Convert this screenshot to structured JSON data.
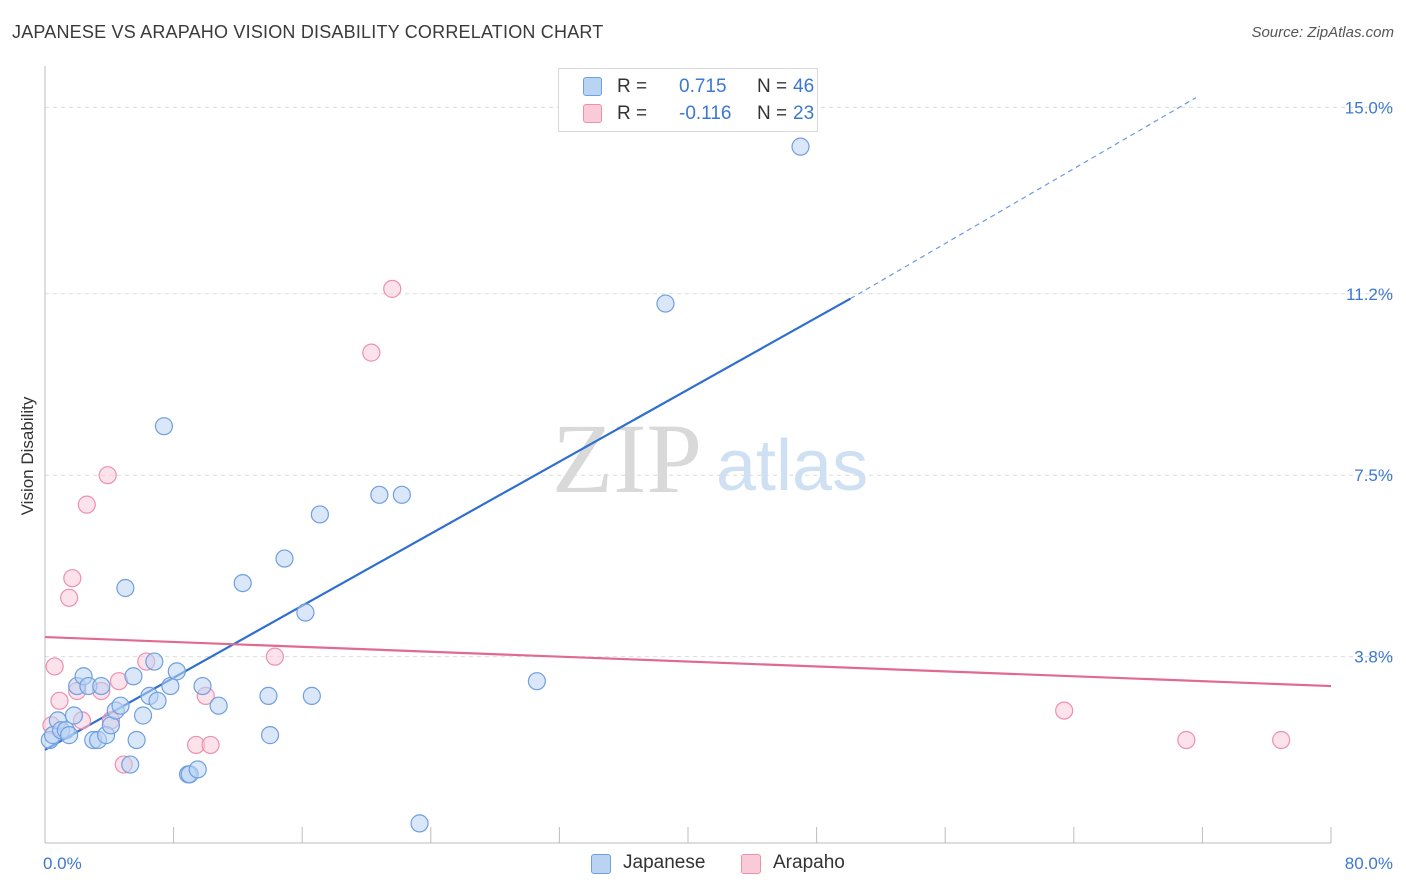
{
  "header": {
    "title": "JAPANESE VS ARAPAHO VISION DISABILITY CORRELATION CHART",
    "source": "Source: ZipAtlas.com"
  },
  "watermark": {
    "zip": "ZIP",
    "atlas": "atlas"
  },
  "legend": {
    "rows": [
      {
        "r_label": "R =",
        "r_value": "0.715",
        "n_label": "N =",
        "n_value": "46"
      },
      {
        "r_label": "R =",
        "r_value": "-0.116",
        "n_label": "N =",
        "n_value": "23"
      }
    ]
  },
  "bottom_legend": {
    "series1": "Japanese",
    "series2": "Arapaho"
  },
  "colors": {
    "japanese_fill": "#b9d3f3",
    "japanese_stroke": "#6f9fe0",
    "japanese_line": "#2f6fd0",
    "arapaho_fill": "#f9cbd8",
    "arapaho_stroke": "#ee90ac",
    "arapaho_line": "#e06a90",
    "tick_text": "#3c78d0"
  },
  "chart_data": {
    "type": "scatter",
    "title": "JAPANESE VS ARAPAHO VISION DISABILITY CORRELATION CHART",
    "xlabel": "",
    "ylabel": "Vision Disability",
    "xlim": [
      0,
      80
    ],
    "ylim": [
      0,
      15.6
    ],
    "x_tick_labels": [
      {
        "value": 0,
        "label": "0.0%"
      },
      {
        "value": 80,
        "label": "80.0%"
      }
    ],
    "y_tick_labels": [
      {
        "value": 3.8,
        "label": "3.8%"
      },
      {
        "value": 7.5,
        "label": "7.5%"
      },
      {
        "value": 11.2,
        "label": "11.2%"
      },
      {
        "value": 15.0,
        "label": "15.0%"
      }
    ],
    "series": [
      {
        "name": "Japanese",
        "R": 0.715,
        "N": 46,
        "points": [
          [
            0.3,
            2.1
          ],
          [
            0.5,
            2.2
          ],
          [
            0.8,
            2.5
          ],
          [
            1.0,
            2.3
          ],
          [
            1.3,
            2.3
          ],
          [
            1.5,
            2.2
          ],
          [
            1.8,
            2.6
          ],
          [
            2.0,
            3.2
          ],
          [
            2.4,
            3.4
          ],
          [
            2.7,
            3.2
          ],
          [
            3.0,
            2.1
          ],
          [
            3.3,
            2.1
          ],
          [
            3.5,
            3.2
          ],
          [
            3.8,
            2.2
          ],
          [
            4.1,
            2.4
          ],
          [
            4.4,
            2.7
          ],
          [
            4.7,
            2.8
          ],
          [
            5.0,
            5.2
          ],
          [
            5.3,
            1.6
          ],
          [
            5.5,
            3.4
          ],
          [
            5.7,
            2.1
          ],
          [
            6.1,
            2.6
          ],
          [
            6.5,
            3.0
          ],
          [
            6.8,
            3.7
          ],
          [
            7.0,
            2.9
          ],
          [
            7.4,
            8.5
          ],
          [
            7.8,
            3.2
          ],
          [
            8.2,
            3.5
          ],
          [
            8.9,
            1.4
          ],
          [
            9.0,
            1.4
          ],
          [
            9.5,
            1.5
          ],
          [
            9.8,
            3.2
          ],
          [
            10.8,
            2.8
          ],
          [
            12.3,
            5.3
          ],
          [
            13.9,
            3.0
          ],
          [
            14.0,
            2.2
          ],
          [
            14.9,
            5.8
          ],
          [
            16.2,
            4.7
          ],
          [
            16.6,
            3.0
          ],
          [
            17.1,
            6.7
          ],
          [
            20.8,
            7.1
          ],
          [
            22.2,
            7.1
          ],
          [
            23.3,
            0.4
          ],
          [
            30.6,
            3.3
          ],
          [
            38.6,
            11.0
          ],
          [
            47.0,
            14.2
          ]
        ],
        "trend": {
          "x0": 0,
          "y0": 1.9,
          "x_solid_end": 50.1,
          "y_solid_end": 11.1,
          "x1": 71.6,
          "y1": 15.2
        }
      },
      {
        "name": "Arapaho",
        "R": -0.116,
        "N": 23,
        "points": [
          [
            0.4,
            2.4
          ],
          [
            0.6,
            3.6
          ],
          [
            0.9,
            2.9
          ],
          [
            1.5,
            5.0
          ],
          [
            1.7,
            5.4
          ],
          [
            2.0,
            3.1
          ],
          [
            2.3,
            2.5
          ],
          [
            2.6,
            6.9
          ],
          [
            3.5,
            3.1
          ],
          [
            3.9,
            7.5
          ],
          [
            4.1,
            2.5
          ],
          [
            4.6,
            3.3
          ],
          [
            4.9,
            1.6
          ],
          [
            6.3,
            3.7
          ],
          [
            9.4,
            2.0
          ],
          [
            10.0,
            3.0
          ],
          [
            10.3,
            2.0
          ],
          [
            14.3,
            3.8
          ],
          [
            20.3,
            10.0
          ],
          [
            21.6,
            11.3
          ],
          [
            63.4,
            2.7
          ],
          [
            71.0,
            2.1
          ],
          [
            76.9,
            2.1
          ]
        ],
        "trend": {
          "x0": 0,
          "y0": 4.2,
          "x1": 80,
          "y1": 3.2
        }
      }
    ]
  }
}
